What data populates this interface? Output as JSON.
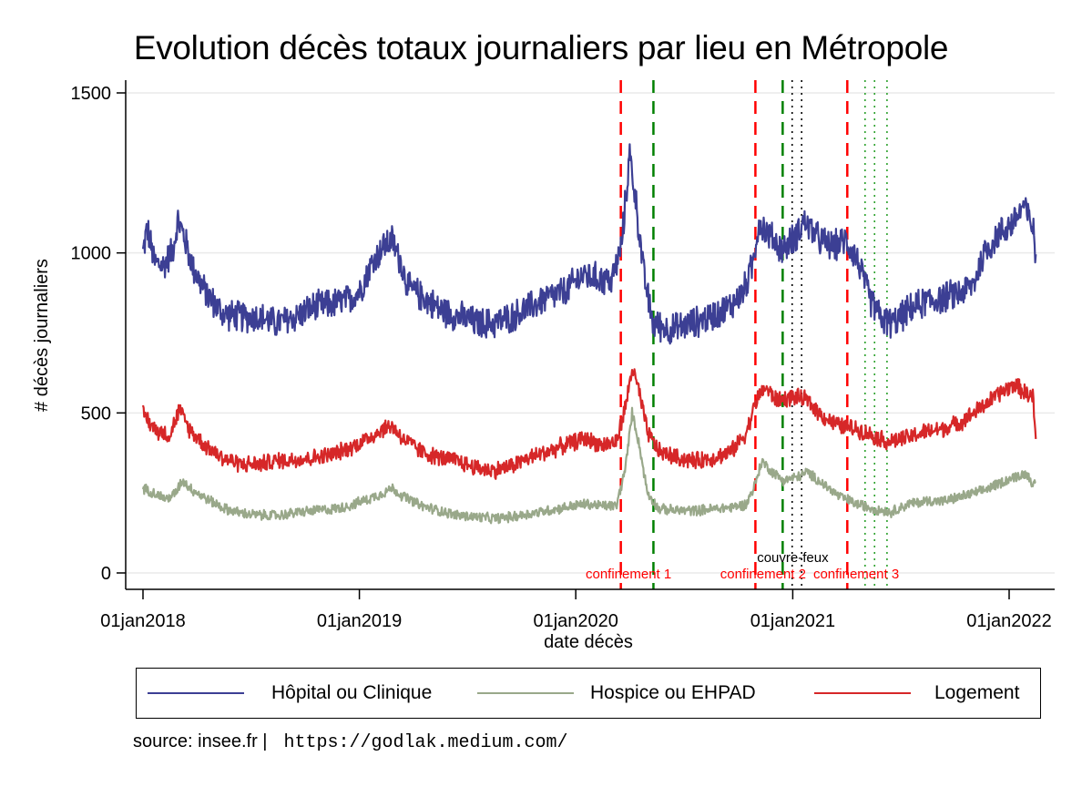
{
  "chart_data": {
    "type": "line",
    "title": "Evolution décès totaux journaliers par lieu en Métropole",
    "xlabel": "date décès",
    "ylabel": "# décès journaliers",
    "ylim": [
      0,
      1500
    ],
    "xlim": [
      "2018-01-01",
      "2022-02-15"
    ],
    "yticks": [
      0,
      500,
      1000,
      1500
    ],
    "xticks": [
      {
        "date": "2018-01-01",
        "label": "01jan2018"
      },
      {
        "date": "2019-01-01",
        "label": "01jan2019"
      },
      {
        "date": "2020-01-01",
        "label": "01jan2020"
      },
      {
        "date": "2021-01-01",
        "label": "01jan2021"
      },
      {
        "date": "2022-01-01",
        "label": "01jan2022"
      }
    ],
    "grid": "horizontal",
    "legend_position": "bottom",
    "series": [
      {
        "name": "Hôpital ou Clinique",
        "color": "#3c3f94",
        "noise": 55,
        "points": [
          [
            "2018-01-01",
            1000
          ],
          [
            "2018-01-08",
            1080
          ],
          [
            "2018-01-20",
            970
          ],
          [
            "2018-02-05",
            960
          ],
          [
            "2018-02-20",
            1010
          ],
          [
            "2018-03-01",
            1100
          ],
          [
            "2018-03-10",
            1060
          ],
          [
            "2018-03-25",
            960
          ],
          [
            "2018-04-15",
            880
          ],
          [
            "2018-05-15",
            810
          ],
          [
            "2018-06-15",
            800
          ],
          [
            "2018-07-15",
            800
          ],
          [
            "2018-08-15",
            780
          ],
          [
            "2018-09-15",
            800
          ],
          [
            "2018-10-15",
            830
          ],
          [
            "2018-11-15",
            840
          ],
          [
            "2018-12-10",
            850
          ],
          [
            "2019-01-01",
            880
          ],
          [
            "2019-01-20",
            960
          ],
          [
            "2019-02-10",
            1020
          ],
          [
            "2019-02-25",
            1040
          ],
          [
            "2019-03-10",
            980
          ],
          [
            "2019-03-25",
            890
          ],
          [
            "2019-04-20",
            860
          ],
          [
            "2019-05-20",
            820
          ],
          [
            "2019-06-20",
            800
          ],
          [
            "2019-07-20",
            780
          ],
          [
            "2019-08-15",
            780
          ],
          [
            "2019-09-15",
            800
          ],
          [
            "2019-10-15",
            830
          ],
          [
            "2019-11-15",
            860
          ],
          [
            "2019-12-15",
            880
          ],
          [
            "2020-01-10",
            930
          ],
          [
            "2020-02-10",
            920
          ],
          [
            "2020-03-01",
            910
          ],
          [
            "2020-03-18",
            1020
          ],
          [
            "2020-04-01",
            1310
          ],
          [
            "2020-04-12",
            1150
          ],
          [
            "2020-04-25",
            930
          ],
          [
            "2020-05-10",
            780
          ],
          [
            "2020-06-10",
            760
          ],
          [
            "2020-07-15",
            780
          ],
          [
            "2020-08-15",
            800
          ],
          [
            "2020-09-15",
            830
          ],
          [
            "2020-10-10",
            880
          ],
          [
            "2020-10-25",
            960
          ],
          [
            "2020-11-05",
            1100
          ],
          [
            "2020-11-20",
            1060
          ],
          [
            "2020-12-15",
            1010
          ],
          [
            "2021-01-05",
            1050
          ],
          [
            "2021-01-20",
            1100
          ],
          [
            "2021-02-15",
            1040
          ],
          [
            "2021-03-10",
            1020
          ],
          [
            "2021-04-01",
            1040
          ],
          [
            "2021-04-20",
            980
          ],
          [
            "2021-05-10",
            860
          ],
          [
            "2021-06-01",
            790
          ],
          [
            "2021-06-20",
            780
          ],
          [
            "2021-07-15",
            820
          ],
          [
            "2021-08-15",
            850
          ],
          [
            "2021-09-15",
            860
          ],
          [
            "2021-10-15",
            880
          ],
          [
            "2021-11-01",
            900
          ],
          [
            "2021-11-20",
            1000
          ],
          [
            "2021-12-15",
            1060
          ],
          [
            "2022-01-10",
            1100
          ],
          [
            "2022-01-25",
            1150
          ],
          [
            "2022-02-10",
            1080
          ],
          [
            "2022-02-15",
            990
          ]
        ]
      },
      {
        "name": "Hospice ou EHPAD",
        "color": "#99a88a",
        "noise": 18,
        "points": [
          [
            "2018-01-01",
            265
          ],
          [
            "2018-01-20",
            250
          ],
          [
            "2018-02-10",
            230
          ],
          [
            "2018-02-25",
            250
          ],
          [
            "2018-03-08",
            290
          ],
          [
            "2018-03-25",
            260
          ],
          [
            "2018-04-20",
            230
          ],
          [
            "2018-05-20",
            200
          ],
          [
            "2018-06-20",
            185
          ],
          [
            "2018-07-20",
            180
          ],
          [
            "2018-08-20",
            180
          ],
          [
            "2018-09-20",
            190
          ],
          [
            "2018-10-20",
            195
          ],
          [
            "2018-11-20",
            200
          ],
          [
            "2018-12-15",
            210
          ],
          [
            "2019-01-15",
            230
          ],
          [
            "2019-02-10",
            250
          ],
          [
            "2019-02-25",
            265
          ],
          [
            "2019-03-15",
            240
          ],
          [
            "2019-04-15",
            210
          ],
          [
            "2019-05-15",
            195
          ],
          [
            "2019-06-15",
            180
          ],
          [
            "2019-07-15",
            175
          ],
          [
            "2019-08-15",
            170
          ],
          [
            "2019-09-15",
            175
          ],
          [
            "2019-10-15",
            185
          ],
          [
            "2019-11-15",
            195
          ],
          [
            "2019-12-15",
            205
          ],
          [
            "2020-01-15",
            215
          ],
          [
            "2020-02-15",
            210
          ],
          [
            "2020-03-10",
            210
          ],
          [
            "2020-03-25",
            330
          ],
          [
            "2020-04-05",
            500
          ],
          [
            "2020-04-15",
            420
          ],
          [
            "2020-05-01",
            250
          ],
          [
            "2020-05-20",
            200
          ],
          [
            "2020-06-20",
            195
          ],
          [
            "2020-07-20",
            195
          ],
          [
            "2020-08-20",
            200
          ],
          [
            "2020-09-20",
            205
          ],
          [
            "2020-10-15",
            215
          ],
          [
            "2020-10-30",
            280
          ],
          [
            "2020-11-10",
            350
          ],
          [
            "2020-11-25",
            320
          ],
          [
            "2020-12-15",
            290
          ],
          [
            "2021-01-10",
            300
          ],
          [
            "2021-01-25",
            315
          ],
          [
            "2021-02-20",
            280
          ],
          [
            "2021-03-20",
            240
          ],
          [
            "2021-04-20",
            215
          ],
          [
            "2021-05-20",
            200
          ],
          [
            "2021-06-15",
            190
          ],
          [
            "2021-07-15",
            215
          ],
          [
            "2021-08-15",
            225
          ],
          [
            "2021-09-15",
            225
          ],
          [
            "2021-10-15",
            240
          ],
          [
            "2021-11-15",
            255
          ],
          [
            "2021-12-15",
            280
          ],
          [
            "2022-01-10",
            300
          ],
          [
            "2022-01-30",
            310
          ],
          [
            "2022-02-15",
            270
          ]
        ]
      },
      {
        "name": "Logement",
        "color": "#d62728",
        "noise": 30,
        "points": [
          [
            "2018-01-01",
            500
          ],
          [
            "2018-01-20",
            450
          ],
          [
            "2018-02-15",
            430
          ],
          [
            "2018-03-03",
            510
          ],
          [
            "2018-03-20",
            450
          ],
          [
            "2018-04-15",
            400
          ],
          [
            "2018-05-15",
            360
          ],
          [
            "2018-06-15",
            340
          ],
          [
            "2018-07-15",
            340
          ],
          [
            "2018-08-15",
            350
          ],
          [
            "2018-09-15",
            355
          ],
          [
            "2018-10-15",
            360
          ],
          [
            "2018-11-15",
            370
          ],
          [
            "2018-12-15",
            390
          ],
          [
            "2019-01-15",
            420
          ],
          [
            "2019-02-10",
            450
          ],
          [
            "2019-02-25",
            460
          ],
          [
            "2019-03-15",
            420
          ],
          [
            "2019-04-15",
            380
          ],
          [
            "2019-05-15",
            360
          ],
          [
            "2019-06-15",
            350
          ],
          [
            "2019-07-15",
            330
          ],
          [
            "2019-08-15",
            320
          ],
          [
            "2019-09-15",
            335
          ],
          [
            "2019-10-15",
            360
          ],
          [
            "2019-11-15",
            380
          ],
          [
            "2019-12-15",
            400
          ],
          [
            "2020-01-15",
            420
          ],
          [
            "2020-02-15",
            400
          ],
          [
            "2020-03-10",
            410
          ],
          [
            "2020-03-25",
            520
          ],
          [
            "2020-04-05",
            640
          ],
          [
            "2020-04-15",
            580
          ],
          [
            "2020-05-01",
            440
          ],
          [
            "2020-05-20",
            380
          ],
          [
            "2020-06-20",
            360
          ],
          [
            "2020-07-20",
            350
          ],
          [
            "2020-08-20",
            360
          ],
          [
            "2020-09-20",
            380
          ],
          [
            "2020-10-15",
            440
          ],
          [
            "2020-11-01",
            540
          ],
          [
            "2020-11-15",
            580
          ],
          [
            "2020-12-05",
            540
          ],
          [
            "2021-01-05",
            550
          ],
          [
            "2021-01-25",
            540
          ],
          [
            "2021-02-20",
            490
          ],
          [
            "2021-03-20",
            460
          ],
          [
            "2021-04-20",
            450
          ],
          [
            "2021-05-15",
            430
          ],
          [
            "2021-06-10",
            410
          ],
          [
            "2021-07-10",
            420
          ],
          [
            "2021-08-10",
            440
          ],
          [
            "2021-09-10",
            450
          ],
          [
            "2021-10-10",
            470
          ],
          [
            "2021-11-10",
            510
          ],
          [
            "2021-12-15",
            560
          ],
          [
            "2022-01-10",
            590
          ],
          [
            "2022-01-30",
            560
          ],
          [
            "2022-02-10",
            550
          ],
          [
            "2022-02-15",
            420
          ]
        ]
      }
    ],
    "vlines": [
      {
        "date": "2020-03-17",
        "color": "#ff0000",
        "style": "dashed"
      },
      {
        "date": "2020-05-11",
        "color": "#008000",
        "style": "dashed"
      },
      {
        "date": "2020-10-30",
        "color": "#ff0000",
        "style": "dashed"
      },
      {
        "date": "2020-12-15",
        "color": "#008000",
        "style": "dashed"
      },
      {
        "date": "2020-12-31",
        "color": "#000000",
        "style": "dotted"
      },
      {
        "date": "2021-01-16",
        "color": "#000000",
        "style": "dotted"
      },
      {
        "date": "2021-04-03",
        "color": "#ff0000",
        "style": "dashed"
      },
      {
        "date": "2021-05-03",
        "color": "#2ca02c",
        "style": "dotted"
      },
      {
        "date": "2021-05-19",
        "color": "#2ca02c",
        "style": "dotted"
      },
      {
        "date": "2021-06-09",
        "color": "#2ca02c",
        "style": "dotted"
      }
    ],
    "annotations": [
      {
        "text": "confinement 1",
        "date": "2020-03-30",
        "y": 0,
        "color": "#ff0000"
      },
      {
        "text": "confinement 2",
        "date": "2020-11-12",
        "y": 0,
        "color": "#ff0000"
      },
      {
        "text": "confinement 3",
        "date": "2021-04-18",
        "y": 0,
        "color": "#ff0000"
      },
      {
        "text": "couvre-feux",
        "date": "2021-01-01",
        "y": 50,
        "color": "#000000"
      }
    ]
  },
  "legend": [
    {
      "label": "Hôpital ou Clinique",
      "color": "#3c3f94"
    },
    {
      "label": "Hospice ou EHPAD",
      "color": "#99a88a"
    },
    {
      "label": "Logement",
      "color": "#d62728"
    }
  ],
  "footer": {
    "source": "source: insee.fr |",
    "url": "https://godlak.medium.com/"
  }
}
